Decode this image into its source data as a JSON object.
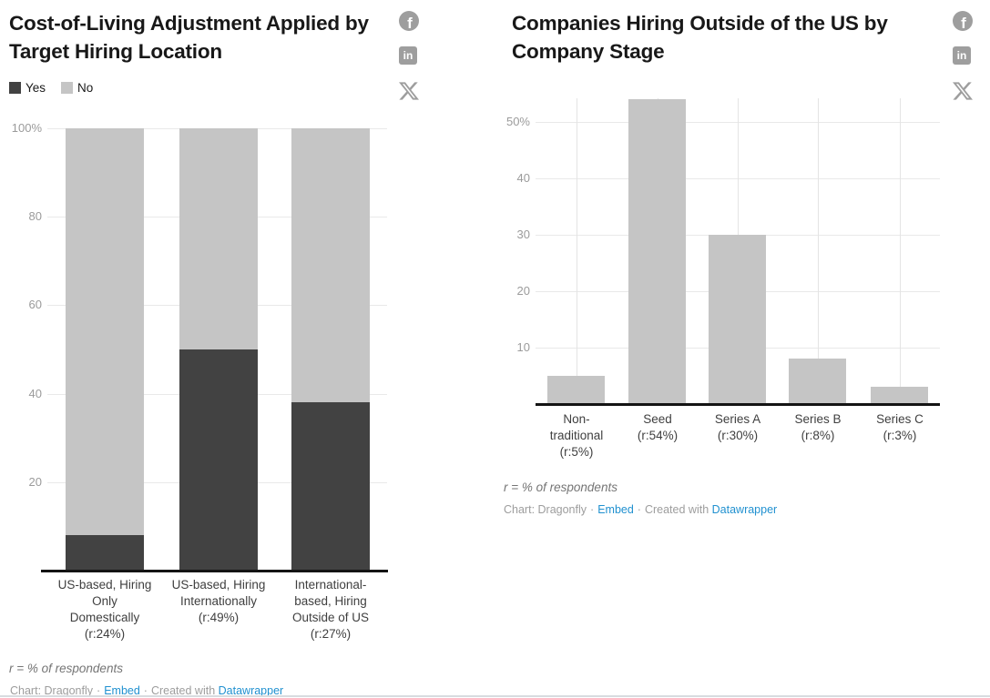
{
  "social": {
    "facebook_glyph": "f",
    "linkedin_glyph": "in"
  },
  "chart_data": [
    {
      "type": "bar",
      "stacked": true,
      "title": "Cost-of-Living Adjustment Applied by Target Hiring Location",
      "categories": [
        "US-based, Hiring\nOnly\nDomestically\n(r:24%)",
        "US-based, Hiring\nInternationally\n(r:49%)",
        "International-\nbased, Hiring\nOutside of US\n(r:27%)"
      ],
      "series": [
        {
          "name": "Yes",
          "color": "#424242",
          "values": [
            8,
            50,
            38
          ]
        },
        {
          "name": "No",
          "color": "#c5c5c5",
          "values": [
            92,
            50,
            62
          ]
        }
      ],
      "ylim": [
        0,
        100
      ],
      "yticks": [
        {
          "v": 20,
          "label": "20"
        },
        {
          "v": 40,
          "label": "40"
        },
        {
          "v": 60,
          "label": "60"
        },
        {
          "v": 80,
          "label": "80"
        },
        {
          "v": 100,
          "label": "100%"
        }
      ],
      "grid": "horizontal",
      "legend_position": "top-left",
      "footnote": "r = % of respondents",
      "credit": {
        "prefix": "Chart: Dragonfly",
        "sep": "·",
        "embed_label": "Embed",
        "created_label": "Created with",
        "datawrapper_label": "Datawrapper"
      }
    },
    {
      "type": "bar",
      "stacked": false,
      "title": "Companies Hiring Outside of the US by Company Stage",
      "categories": [
        "Non-\ntraditional\n(r:5%)",
        "Seed\n(r:54%)",
        "Series A\n(r:30%)",
        "Series B\n(r:8%)",
        "Series C\n(r:3%)"
      ],
      "values": [
        5,
        54,
        30,
        8,
        3
      ],
      "bar_color": "#c5c5c5",
      "ylim": [
        0,
        55
      ],
      "yticks": [
        {
          "v": 10,
          "label": "10"
        },
        {
          "v": 20,
          "label": "20"
        },
        {
          "v": 30,
          "label": "30"
        },
        {
          "v": 40,
          "label": "40"
        },
        {
          "v": 50,
          "label": "50%"
        }
      ],
      "grid": "horizontal+vertical",
      "footnote": "r = % of respondents",
      "credit": {
        "prefix": "Chart: Dragonfly",
        "sep": "·",
        "embed_label": "Embed",
        "created_label": "Created with",
        "datawrapper_label": "Datawrapper"
      }
    }
  ]
}
